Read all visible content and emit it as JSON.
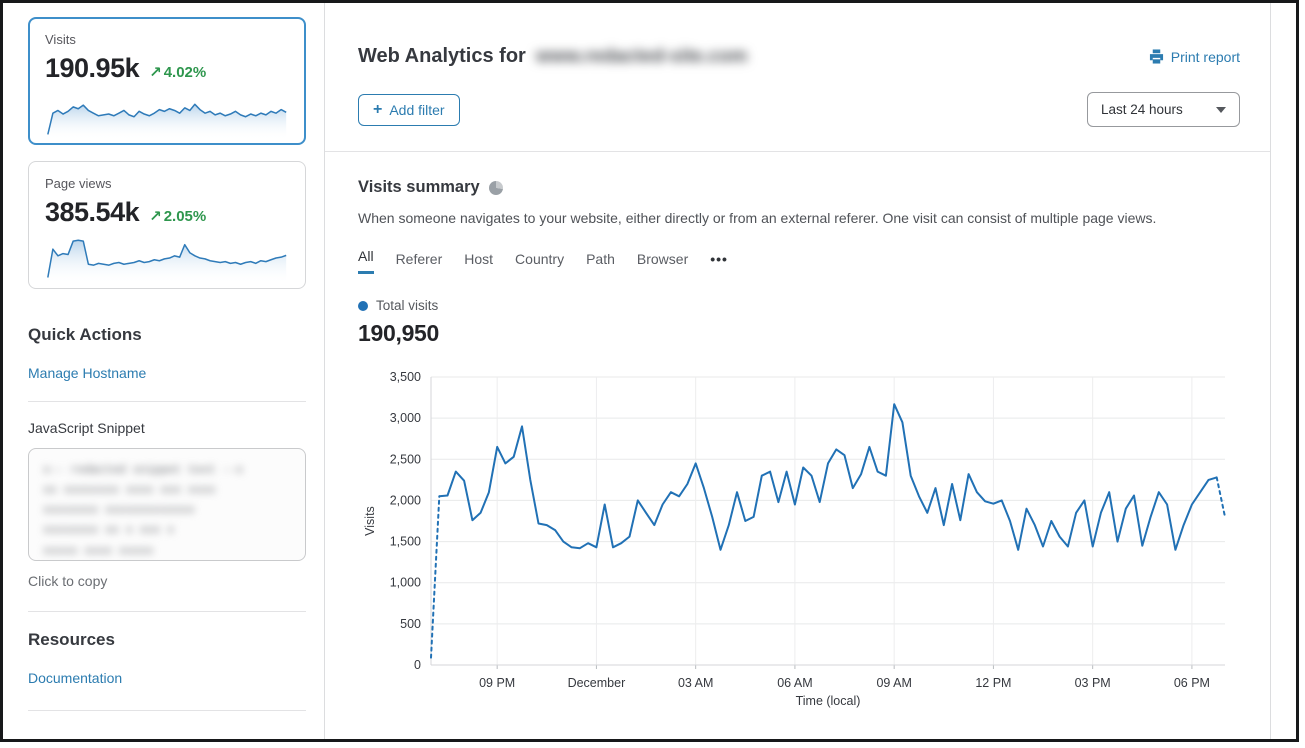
{
  "colors": {
    "accent_blue": "#2c7cb0",
    "chart_blue": "#2171b5",
    "selected_card_border": "#3e8fca",
    "positive_green": "#2e964d"
  },
  "icons": {
    "trend_up": "↗",
    "more_tabs": "•••",
    "plus": "+"
  },
  "sidebar": {
    "cards": [
      {
        "title": "Visits",
        "value": "190.95k",
        "change": "4.02%",
        "trend": "up",
        "selected": true,
        "sparkline": [
          4,
          52,
          58,
          50,
          56,
          66,
          62,
          70,
          58,
          52,
          46,
          48,
          50,
          46,
          52,
          58,
          48,
          44,
          56,
          50,
          46,
          52,
          60,
          56,
          62,
          58,
          52,
          64,
          58,
          72,
          60,
          52,
          56,
          48,
          52,
          46,
          50,
          56,
          48,
          44,
          50,
          46,
          52,
          48,
          56,
          52,
          60,
          54
        ]
      },
      {
        "title": "Page views",
        "value": "385.54k",
        "change": "2.05%",
        "trend": "up",
        "selected": false,
        "sparkline": [
          6,
          70,
          55,
          60,
          58,
          88,
          90,
          88,
          36,
          34,
          38,
          36,
          34,
          38,
          40,
          36,
          38,
          40,
          44,
          40,
          42,
          46,
          44,
          48,
          50,
          55,
          52,
          80,
          62,
          55,
          50,
          48,
          44,
          42,
          40,
          42,
          38,
          40,
          36,
          40,
          42,
          38,
          44,
          42,
          46,
          50,
          52,
          56
        ]
      }
    ],
    "quick_actions": {
      "heading": "Quick Actions",
      "manage_hostname_label": "Manage Hostname",
      "snippet_label": "JavaScript Snippet",
      "snippet_hint": "Click to copy",
      "snippet_redacted_text": "x-- redacted snippet text --x\nxx xxxxxxxx xxxx xxx xxxx\nxxxxxxxx xxxxxxxxxxxxx\nxxxxxxxx xx x xxx x\nxxxxx xxxx xxxxx"
    },
    "resources": {
      "heading": "Resources",
      "documentation_label": "Documentation"
    }
  },
  "header": {
    "title": "Web Analytics for",
    "domain_redacted": "www.redacted-site.com",
    "print_label": "Print report"
  },
  "toolbar": {
    "add_filter_label": "Add filter",
    "time_range_value": "Last 24 hours"
  },
  "summary": {
    "heading": "Visits summary",
    "description": "When someone navigates to your website, either directly or from an external referer. One visit can consist of multiple page views.",
    "tabs": [
      "All",
      "Referer",
      "Host",
      "Country",
      "Path",
      "Browser"
    ],
    "active_tab": "All",
    "legend_label": "Total visits",
    "total_value": "190,950"
  },
  "chart_data": {
    "type": "line",
    "title": "Visits summary",
    "xlabel": "Time (local)",
    "ylabel": "Visits",
    "ylim": [
      0,
      3500
    ],
    "y_ticks": [
      0,
      500,
      1000,
      1500,
      2000,
      2500,
      3000,
      3500
    ],
    "x_tick_labels": [
      "09 PM",
      "December",
      "03 AM",
      "06 AM",
      "09 AM",
      "12 PM",
      "03 PM",
      "06 PM"
    ],
    "x_tick_indices": [
      8,
      20,
      32,
      44,
      56,
      68,
      80,
      92
    ],
    "grid": true,
    "legend_position": "top-left",
    "series": [
      {
        "name": "Total visits",
        "color": "#2171b5",
        "dashed_head_points": 2,
        "dashed_tail_points": 2,
        "values": [
          90,
          2050,
          2060,
          2350,
          2240,
          1760,
          1850,
          2100,
          2650,
          2450,
          2530,
          2900,
          2250,
          1720,
          1700,
          1640,
          1500,
          1430,
          1420,
          1480,
          1430,
          1950,
          1430,
          1480,
          1560,
          2000,
          1850,
          1700,
          1950,
          2100,
          2050,
          2200,
          2450,
          2150,
          1800,
          1400,
          1700,
          2100,
          1750,
          1800,
          2300,
          2350,
          1980,
          2350,
          1950,
          2400,
          2300,
          1980,
          2450,
          2620,
          2550,
          2150,
          2320,
          2650,
          2350,
          2300,
          3170,
          2950,
          2300,
          2050,
          1850,
          2150,
          1700,
          2200,
          1760,
          2320,
          2100,
          1990,
          1960,
          2000,
          1750,
          1400,
          1900,
          1700,
          1440,
          1750,
          1560,
          1440,
          1850,
          2000,
          1440,
          1850,
          2100,
          1500,
          1900,
          2060,
          1450,
          1800,
          2100,
          1950,
          1400,
          1700,
          1950,
          2100,
          2250,
          2280,
          1800
        ]
      }
    ]
  }
}
